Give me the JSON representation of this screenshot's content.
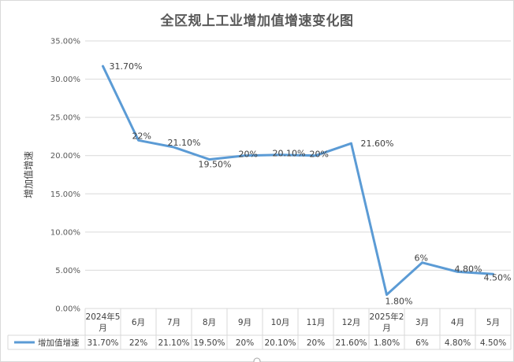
{
  "chart_data": {
    "type": "line",
    "title": "全区规上工业增加值增速变化图",
    "ylabel": "增加值增速",
    "xlabel": "",
    "ylim": [
      0,
      35
    ],
    "yticks": [
      "0.00%",
      "5.00%",
      "10.00%",
      "15.00%",
      "20.00%",
      "25.00%",
      "30.00%",
      "35.00%"
    ],
    "ytick_values": [
      0,
      5,
      10,
      15,
      20,
      25,
      30,
      35
    ],
    "categories": [
      "2024年5月",
      "6月",
      "7月",
      "8月",
      "9月",
      "10月",
      "11月",
      "12月",
      "2025年2月",
      "3月",
      "4月",
      "5月"
    ],
    "series": [
      {
        "name": "增加值增速",
        "color": "#5b9bd5",
        "values": [
          31.7,
          22,
          21.1,
          19.5,
          20,
          20.1,
          20,
          21.6,
          1.8,
          6,
          4.8,
          4.5
        ],
        "labels": [
          "31.70%",
          "22%",
          "21.10%",
          "19.50%",
          "20%",
          "20.10%",
          "20%",
          "21.60%",
          "1.80%",
          "6%",
          "4.80%",
          "4.50%"
        ]
      }
    ],
    "grid": true,
    "legend": "data-table",
    "data_table": true
  }
}
